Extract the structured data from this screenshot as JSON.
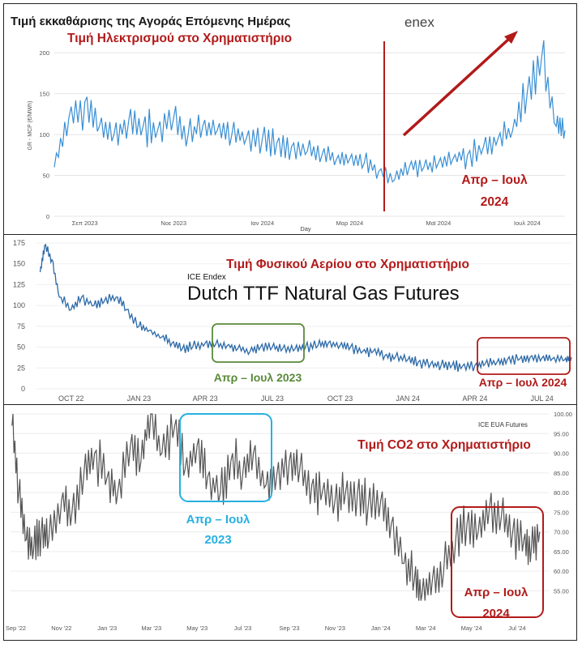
{
  "colors": {
    "electricity": "#3a8fd4",
    "gas": "#2d6aa8",
    "co2": "#555555",
    "red": "#b21a1a",
    "green": "#5a8a3a",
    "cyan": "#27b0e0"
  },
  "chart_data": [
    {
      "type": "line",
      "title": "Τιμή εκκαθάρισης της Αγοράς Επόμενης Ημέρας",
      "subtitle": "Τιμή Ηλεκτρισμού στο Χρηματιστήριο",
      "logo": "enex",
      "xlabel": "Day",
      "ylabel": "GR - MCP (€/MWh)",
      "ylim": [
        0,
        220
      ],
      "yticks": [
        0,
        50,
        100,
        150,
        200
      ],
      "x_tick_labels": [
        "Σεπ 2023",
        "Νοε 2023",
        "Ιαν 2024",
        "Μαρ 2024",
        "Μαϊ 2024",
        "Ιουλ 2024"
      ],
      "x_range": [
        "2023-08-15",
        "2024-07-31"
      ],
      "series": [
        {
          "name": "",
          "x": [
            "2023-08-15",
            "2023-08-25",
            "2023-09-05",
            "2023-09-15",
            "2023-09-25",
            "2023-10-05",
            "2023-10-15",
            "2023-10-25",
            "2023-11-05",
            "2023-11-15",
            "2023-11-25",
            "2023-12-05",
            "2023-12-15",
            "2023-12-25",
            "2024-01-05",
            "2024-01-15",
            "2024-01-25",
            "2024-02-05",
            "2024-02-15",
            "2024-02-25",
            "2024-03-05",
            "2024-03-15",
            "2024-03-25",
            "2024-04-05",
            "2024-04-15",
            "2024-04-25",
            "2024-05-05",
            "2024-05-15",
            "2024-05-25",
            "2024-06-05",
            "2024-06-15",
            "2024-06-25",
            "2024-07-05",
            "2024-07-15",
            "2024-07-25",
            "2024-07-31"
          ],
          "values": [
            60,
            120,
            140,
            110,
            100,
            115,
            110,
            105,
            120,
            100,
            110,
            105,
            100,
            95,
            95,
            90,
            85,
            80,
            75,
            70,
            70,
            65,
            55,
            45,
            60,
            60,
            65,
            70,
            75,
            85,
            95,
            105,
            150,
            195,
            110,
            105
          ]
        }
      ],
      "annotation": {
        "text": [
          "Απρ – Ιουλ",
          "2024"
        ]
      }
    },
    {
      "type": "line",
      "title": "Τιμή Φυσικού Αερίου στο Χρηματιστήριο",
      "source": "ICE Endex",
      "subtitle": "Dutch TTF Natural Gas Futures",
      "ylim": [
        0,
        175
      ],
      "yticks": [
        0,
        25,
        50,
        75,
        100,
        125,
        150,
        175
      ],
      "x_tick_labels": [
        "OCT 22",
        "JAN 23",
        "APR 23",
        "JUL 23",
        "OCT 23",
        "JAN 24",
        "APR 24",
        "JUL 24"
      ],
      "x_range": [
        "2022-08-15",
        "2024-08-10"
      ],
      "series": [
        {
          "name": "",
          "x": [
            "2022-08-20",
            "2022-08-26",
            "2022-09-05",
            "2022-09-15",
            "2022-10-01",
            "2022-10-15",
            "2022-11-01",
            "2022-11-15",
            "2022-12-01",
            "2022-12-15",
            "2023-01-01",
            "2023-01-15",
            "2023-02-01",
            "2023-02-15",
            "2023-03-01",
            "2023-03-15",
            "2023-04-01",
            "2023-04-15",
            "2023-05-01",
            "2023-05-15",
            "2023-06-01",
            "2023-06-15",
            "2023-07-01",
            "2023-07-15",
            "2023-08-01",
            "2023-08-15",
            "2023-09-01",
            "2023-09-15",
            "2023-10-01",
            "2023-10-15",
            "2023-11-01",
            "2023-11-15",
            "2023-12-01",
            "2023-12-15",
            "2024-01-01",
            "2024-01-15",
            "2024-02-01",
            "2024-02-15",
            "2024-03-01",
            "2024-03-15",
            "2024-04-01",
            "2024-04-15",
            "2024-05-01",
            "2024-05-15",
            "2024-06-01",
            "2024-06-15",
            "2024-07-01",
            "2024-07-15",
            "2024-08-01",
            "2024-08-10"
          ],
          "values": [
            140,
            172,
            155,
            110,
            95,
            110,
            100,
            105,
            110,
            95,
            75,
            70,
            62,
            55,
            48,
            50,
            55,
            53,
            52,
            48,
            45,
            50,
            50,
            48,
            48,
            50,
            52,
            55,
            52,
            50,
            45,
            45,
            40,
            38,
            35,
            32,
            30,
            28,
            28,
            27,
            28,
            30,
            32,
            35,
            36,
            38,
            37,
            36,
            35,
            38
          ]
        }
      ],
      "annotations": [
        {
          "text": "Απρ – Ιουλ 2023"
        },
        {
          "text": "Απρ – Ιουλ 2024"
        }
      ]
    },
    {
      "type": "line",
      "title": "Τιμή CO2 στο Χρηματιστήριο",
      "source": "ICE EUA Futures",
      "ylim": [
        52,
        100
      ],
      "yticks": [
        55,
        60,
        65,
        70,
        75,
        80,
        85,
        90,
        95,
        100
      ],
      "y_tick_labels": [
        "55.00",
        "60.00",
        "65.00",
        "70.00",
        "75.00",
        "80.00",
        "85.00",
        "90.00",
        "95.00",
        "100.00"
      ],
      "x_tick_labels": [
        "Sep '22",
        "Nov '22",
        "Jan '23",
        "Mar '23",
        "May '23",
        "Jul '23",
        "Sep '23",
        "Nov '23",
        "Jan '24",
        "Mar '24",
        "May '24",
        "Jul '24"
      ],
      "x_range": [
        "2022-08-25",
        "2024-08-10"
      ],
      "series": [
        {
          "name": "",
          "x": [
            "2022-08-27",
            "2022-09-05",
            "2022-09-15",
            "2022-09-25",
            "2022-10-05",
            "2022-10-15",
            "2022-11-01",
            "2022-11-15",
            "2022-12-01",
            "2022-12-15",
            "2023-01-01",
            "2023-01-15",
            "2023-02-01",
            "2023-02-15",
            "2023-02-28",
            "2023-03-15",
            "2023-04-01",
            "2023-04-15",
            "2023-05-01",
            "2023-05-15",
            "2023-06-01",
            "2023-06-15",
            "2023-07-01",
            "2023-07-15",
            "2023-08-01",
            "2023-08-15",
            "2023-09-01",
            "2023-09-15",
            "2023-10-01",
            "2023-10-15",
            "2023-11-01",
            "2023-11-15",
            "2023-12-01",
            "2023-12-15",
            "2024-01-01",
            "2024-01-15",
            "2024-02-01",
            "2024-02-15",
            "2024-02-25",
            "2024-03-10",
            "2024-03-25",
            "2024-04-10",
            "2024-04-25",
            "2024-05-10",
            "2024-05-25",
            "2024-06-10",
            "2024-06-25",
            "2024-07-10",
            "2024-07-20",
            "2024-07-31"
          ],
          "values": [
            97,
            80,
            68,
            66,
            70,
            68,
            78,
            75,
            85,
            90,
            84,
            80,
            92,
            88,
            100,
            90,
            97,
            86,
            92,
            84,
            80,
            88,
            85,
            90,
            82,
            84,
            88,
            86,
            82,
            80,
            78,
            80,
            80,
            76,
            78,
            72,
            62,
            58,
            54,
            58,
            60,
            68,
            72,
            70,
            76,
            74,
            70,
            68,
            66,
            70
          ]
        }
      ],
      "annotations": [
        {
          "text": [
            "Απρ – Ιουλ",
            "2023"
          ]
        },
        {
          "text": [
            "Απρ – Ιουλ",
            "2024"
          ]
        }
      ]
    }
  ]
}
